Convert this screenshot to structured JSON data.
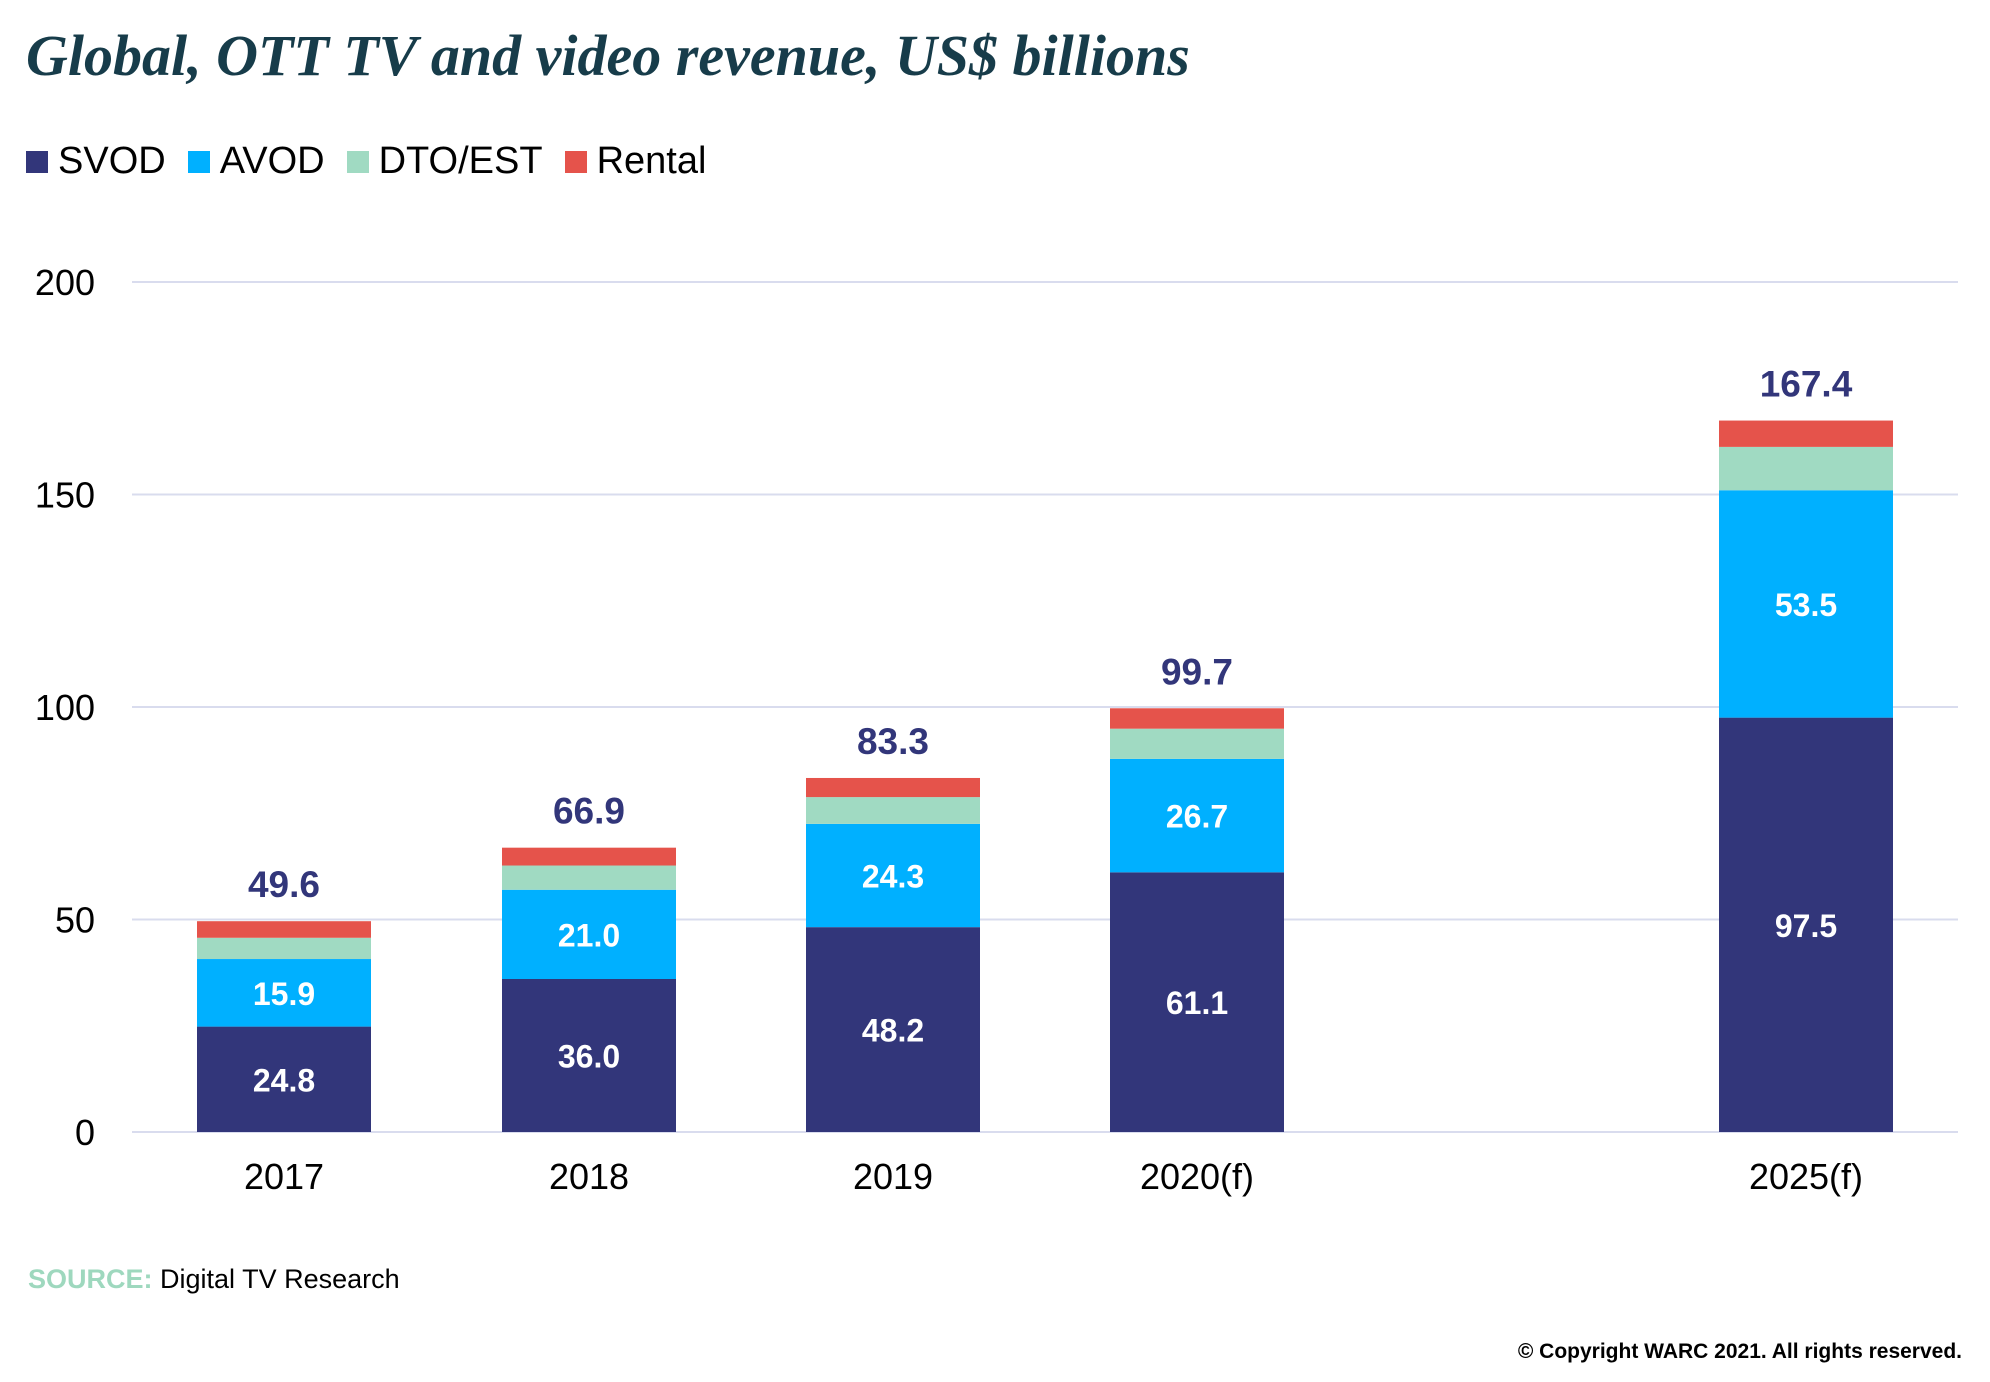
{
  "title": "Global, OTT TV and video revenue, US$ billions",
  "source": {
    "label": "SOURCE:",
    "text": "Digital TV Research"
  },
  "copyright": "© Copyright WARC 2021. All rights reserved.",
  "colors": {
    "SVOD": "#32367a",
    "AVOD": "#00b0ff",
    "DTO/EST": "#a0dac2",
    "Rental": "#e5534b",
    "total_label": "#32367a",
    "grid": "#d9dcee",
    "title": "#173c4a"
  },
  "chart_data": {
    "type": "bar",
    "stacked": true,
    "title": "Global, OTT TV and video revenue, US$ billions",
    "xlabel": "",
    "ylabel": "",
    "ylim": [
      0,
      200
    ],
    "yticks": [
      "0",
      "50",
      "100",
      "150",
      "200"
    ],
    "grid": true,
    "legend_position": "top-left",
    "categories": [
      "2017",
      "2018",
      "2019",
      "2020(f)",
      "2025(f)"
    ],
    "series": [
      {
        "name": "SVOD",
        "values": [
          24.8,
          36.0,
          48.2,
          61.1,
          97.5
        ],
        "labels": [
          "24.8",
          "36.0",
          "48.2",
          "61.1",
          "97.5"
        ]
      },
      {
        "name": "AVOD",
        "values": [
          15.9,
          21.0,
          24.3,
          26.7,
          53.5
        ],
        "labels": [
          "15.9",
          "21.0",
          "24.3",
          "26.7",
          "53.5"
        ]
      },
      {
        "name": "DTO/EST",
        "values": [
          5.0,
          5.7,
          6.3,
          7.1,
          10.2
        ]
      },
      {
        "name": "Rental",
        "values": [
          3.9,
          4.2,
          4.5,
          4.8,
          6.2
        ]
      }
    ],
    "totals": [
      "49.6",
      "66.9",
      "83.3",
      "99.7",
      "167.4"
    ]
  }
}
